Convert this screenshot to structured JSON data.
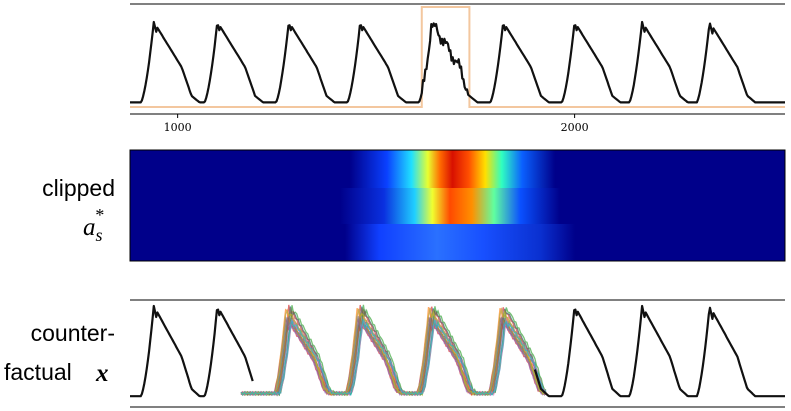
{
  "colors": {
    "signal": "#111111",
    "highlight_box": "#f3c79f",
    "heatmap_bg": "#00008a"
  },
  "labels": {
    "clipped": "clipped",
    "a_s_star": "a",
    "a_s_sub": "s",
    "a_s_sup": "*",
    "counterfactual_line1": "counter-",
    "counterfactual_line2": "factual",
    "counterfactual_var": "x"
  },
  "chart_data": [
    {
      "type": "line",
      "panel": "top-signal",
      "title": "",
      "xlabel": "",
      "ylabel": "",
      "xticks": [
        1000,
        2000
      ],
      "xlim": [
        880,
        2530
      ],
      "ylim": [
        0,
        1
      ],
      "beat_peaks_x": [
        940,
        1100,
        1280,
        1460,
        1640,
        1820,
        2000,
        2170,
        2340
      ],
      "highlight_window_x": [
        1615,
        1735
      ],
      "grid": false,
      "legend": "none"
    },
    {
      "type": "heatmap",
      "panel": "clipped-attribution",
      "rows": 3,
      "x_range": [
        880,
        2530
      ],
      "colormap": "jet",
      "active_region_x": [
        1500,
        1780
      ],
      "peak_value_x": 1640,
      "values_row_peak": [
        1.0,
        0.8,
        0.3
      ]
    },
    {
      "type": "line",
      "panel": "counterfactuals",
      "title": "",
      "xlabel": "",
      "ylabel": "",
      "xlim": [
        880,
        2530
      ],
      "beat_peaks_x": [
        940,
        1100,
        1280,
        1460,
        1640,
        1820,
        2000,
        2170,
        2340
      ],
      "perturbed_beats_x": [
        1280,
        1460,
        1640,
        1820
      ],
      "series_count": 20,
      "legend": "none"
    }
  ]
}
